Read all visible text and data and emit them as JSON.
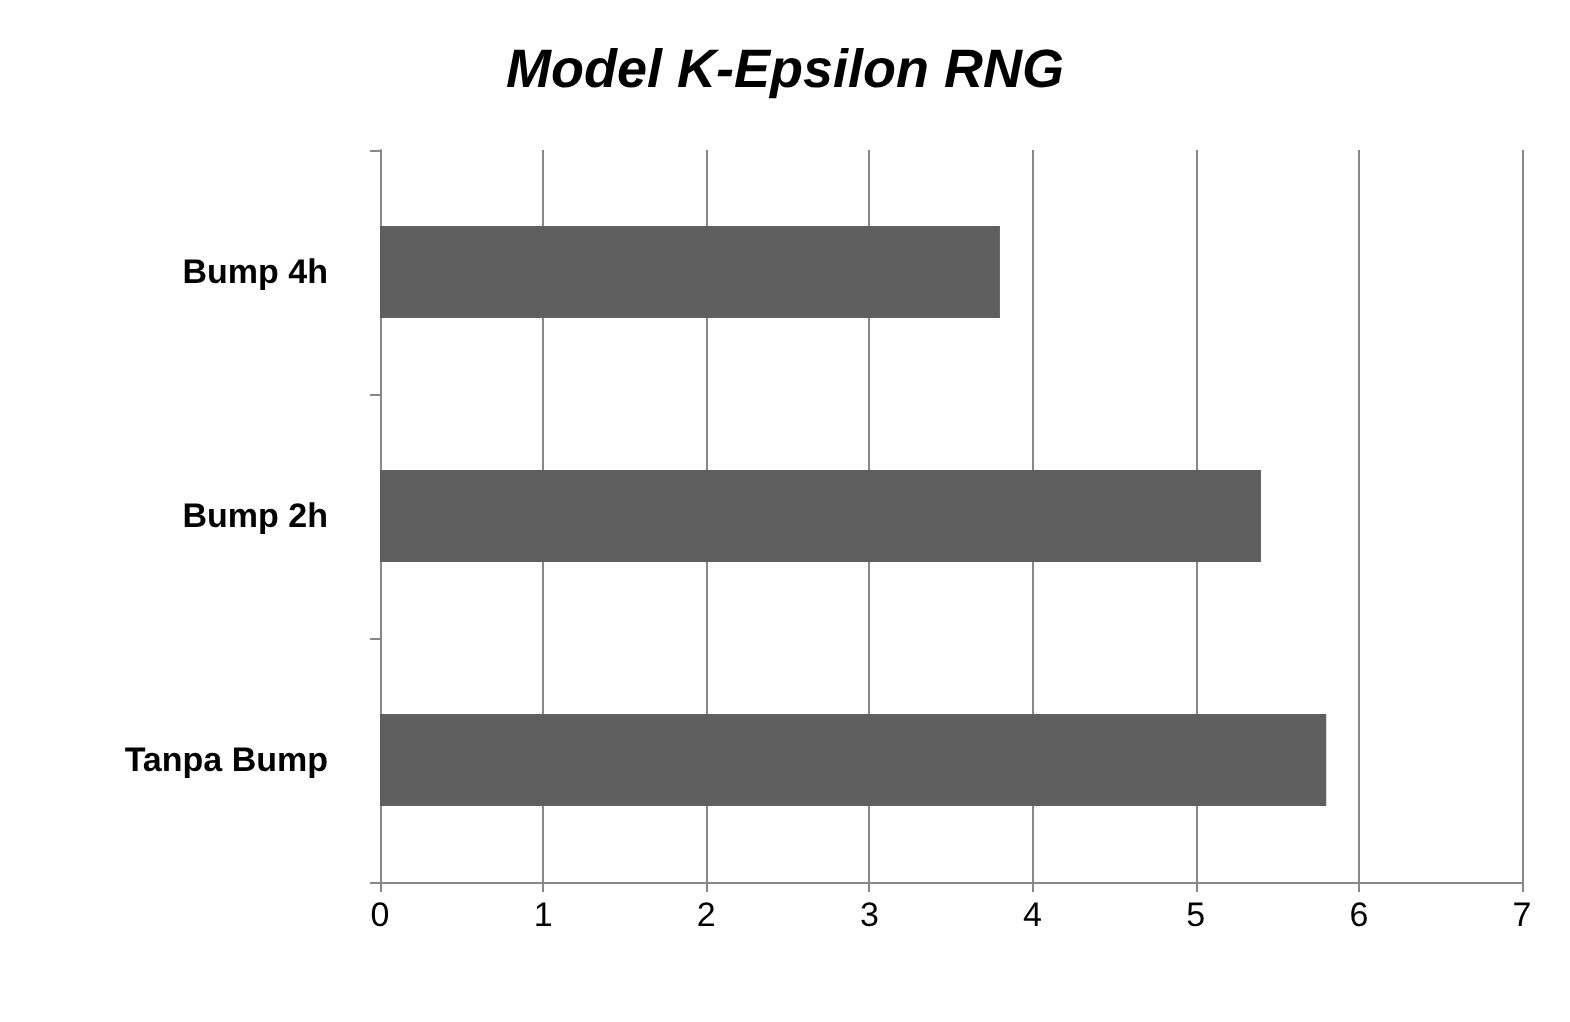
{
  "chart_data": {
    "type": "bar",
    "orientation": "horizontal",
    "title": "Model K-Epsilon RNG",
    "categories": [
      "Bump 4h",
      "Bump 2h",
      "Tanpa Bump"
    ],
    "values": [
      3.8,
      5.4,
      5.8
    ],
    "color": "#5f5f5f",
    "xlim": [
      0,
      7
    ],
    "xticks": [
      0,
      1,
      2,
      3,
      4,
      5,
      6,
      7
    ],
    "grid": "x"
  }
}
